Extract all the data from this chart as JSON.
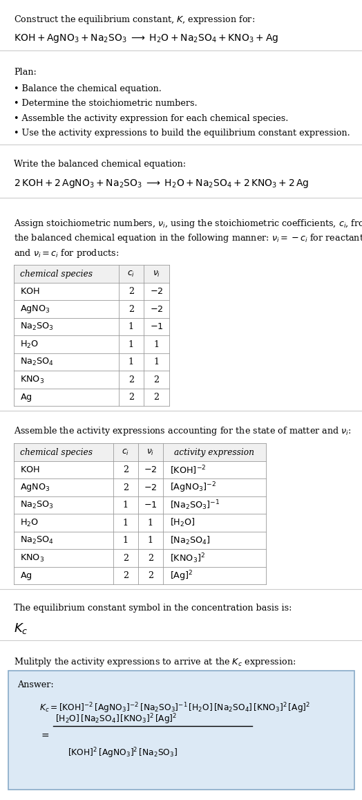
{
  "bg_color": "#ffffff",
  "text_color": "#000000",
  "title_line1": "Construct the equilibrium constant, $K$, expression for:",
  "title_line2": "$\\mathrm{KOH + AgNO_3 + Na_2SO_3 \\;\\longrightarrow\\; H_2O + Na_2SO_4 + KNO_3 + Ag}$",
  "plan_header": "Plan:",
  "plan_items": [
    "• Balance the chemical equation.",
    "• Determine the stoichiometric numbers.",
    "• Assemble the activity expression for each chemical species.",
    "• Use the activity expressions to build the equilibrium constant expression."
  ],
  "balanced_header": "Write the balanced chemical equation:",
  "balanced_eq": "$\\mathrm{2\\,KOH + 2\\,AgNO_3 + Na_2SO_3 \\;\\longrightarrow\\; H_2O + Na_2SO_4 + 2\\,KNO_3 + 2\\,Ag}$",
  "stoich_header1": "Assign stoichiometric numbers, $\\nu_i$, using the stoichiometric coefficients, $c_i$, from",
  "stoich_header2": "the balanced chemical equation in the following manner: $\\nu_i = -c_i$ for reactants",
  "stoich_header3": "and $\\nu_i = c_i$ for products:",
  "table1_headers": [
    "chemical species",
    "$c_i$",
    "$\\nu_i$"
  ],
  "table1_rows": [
    [
      "$\\mathrm{KOH}$",
      "2",
      "$-2$"
    ],
    [
      "$\\mathrm{AgNO_3}$",
      "2",
      "$-2$"
    ],
    [
      "$\\mathrm{Na_2SO_3}$",
      "1",
      "$-1$"
    ],
    [
      "$\\mathrm{H_2O}$",
      "1",
      "1"
    ],
    [
      "$\\mathrm{Na_2SO_4}$",
      "1",
      "1"
    ],
    [
      "$\\mathrm{KNO_3}$",
      "2",
      "2"
    ],
    [
      "$\\mathrm{Ag}$",
      "2",
      "2"
    ]
  ],
  "activity_header": "Assemble the activity expressions accounting for the state of matter and $\\nu_i$:",
  "table2_headers": [
    "chemical species",
    "$c_i$",
    "$\\nu_i$",
    "activity expression"
  ],
  "table2_rows": [
    [
      "$\\mathrm{KOH}$",
      "2",
      "$-2$",
      "$[\\mathrm{KOH}]^{-2}$"
    ],
    [
      "$\\mathrm{AgNO_3}$",
      "2",
      "$-2$",
      "$[\\mathrm{AgNO_3}]^{-2}$"
    ],
    [
      "$\\mathrm{Na_2SO_3}$",
      "1",
      "$-1$",
      "$[\\mathrm{Na_2SO_3}]^{-1}$"
    ],
    [
      "$\\mathrm{H_2O}$",
      "1",
      "1",
      "$[\\mathrm{H_2O}]$"
    ],
    [
      "$\\mathrm{Na_2SO_4}$",
      "1",
      "1",
      "$[\\mathrm{Na_2SO_4}]$"
    ],
    [
      "$\\mathrm{KNO_3}$",
      "2",
      "2",
      "$[\\mathrm{KNO_3}]^{2}$"
    ],
    [
      "$\\mathrm{Ag}$",
      "2",
      "2",
      "$[\\mathrm{Ag}]^{2}$"
    ]
  ],
  "kc_header": "The equilibrium constant symbol in the concentration basis is:",
  "kc_symbol": "$K_c$",
  "multiply_header": "Mulitply the activity expressions to arrive at the $K_c$ expression:",
  "answer_label": "Answer:",
  "answer_line1": "$K_c = [\\mathrm{KOH}]^{-2}\\,[\\mathrm{AgNO_3}]^{-2}\\,[\\mathrm{Na_2SO_3}]^{-1}\\,[\\mathrm{H_2O}]\\,[\\mathrm{Na_2SO_4}]\\,[\\mathrm{KNO_3}]^{2}\\,[\\mathrm{Ag}]^{2}$",
  "answer_eq": "$=$",
  "answer_num": "$[\\mathrm{H_2O}]\\,[\\mathrm{Na_2SO_4}]\\,[\\mathrm{KNO_3}]^{2}\\,[\\mathrm{Ag}]^{2}$",
  "answer_den": "$[\\mathrm{KOH}]^{2}\\,[\\mathrm{AgNO_3}]^{2}\\,[\\mathrm{Na_2SO_3}]$",
  "answer_box_color": "#dce9f5",
  "answer_box_border": "#88aac8",
  "table_header_bg": "#f0f0f0",
  "table_border": "#999999",
  "hline_color": "#cccccc"
}
